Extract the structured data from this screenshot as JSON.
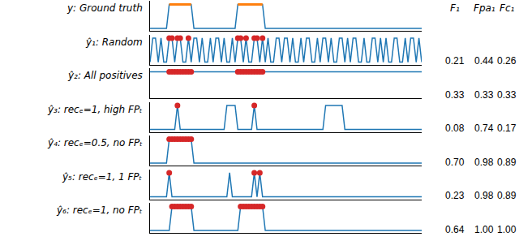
{
  "chart_data": [
    {
      "type": "line",
      "title": "y: Ground truth",
      "xlim": [
        0,
        99
      ],
      "ylim": [
        -0.1,
        1.15
      ],
      "xticks": [],
      "yticks": [],
      "tick_labels": false,
      "series": [
        {
          "color": "#1f77b4",
          "x": [
            0,
            6,
            7,
            15,
            16,
            31,
            32,
            41,
            42,
            99
          ],
          "values": [
            0,
            0,
            1,
            1,
            0,
            0,
            1,
            1,
            0,
            0
          ]
        },
        {
          "color": "#ff7f0e",
          "x": [
            7,
            15
          ],
          "values": [
            1,
            1
          ]
        },
        {
          "color": "#ff7f0e",
          "x": [
            32,
            41
          ],
          "values": [
            1,
            1
          ]
        }
      ]
    },
    {
      "type": "line",
      "title": "ŷ₁: Random",
      "xlim": [
        0,
        99
      ],
      "ylim": [
        -0.1,
        1.15
      ],
      "xticks": [],
      "yticks": [],
      "tick_labels": false,
      "series": [
        {
          "color": "#1f77b4",
          "x": [
            0,
            1,
            2,
            3,
            4,
            5,
            6,
            7,
            8,
            9,
            10,
            11,
            12,
            13,
            14,
            15,
            16,
            17,
            18,
            19,
            20,
            21,
            22,
            23,
            24,
            25,
            26,
            27,
            28,
            29,
            30,
            31,
            32,
            33,
            34,
            35,
            36,
            37,
            38,
            39,
            40,
            41,
            42,
            43,
            44,
            45,
            46,
            47,
            48,
            49,
            50,
            51,
            52,
            53,
            54,
            55,
            56,
            57,
            58,
            59,
            60,
            61,
            62,
            63,
            64,
            65,
            66,
            67,
            68,
            69,
            70,
            71,
            72,
            73,
            74,
            75,
            76,
            77,
            78,
            79,
            80,
            81,
            82,
            83,
            84,
            85,
            86,
            87,
            88,
            89,
            90,
            91,
            92,
            93,
            94,
            95,
            96,
            97,
            98,
            99
          ],
          "values": [
            0,
            1,
            1,
            0,
            1,
            0,
            0,
            1,
            1,
            0,
            1,
            1,
            0,
            0,
            1,
            0,
            1,
            1,
            0,
            1,
            0,
            0,
            1,
            0,
            1,
            1,
            0,
            1,
            0,
            0,
            1,
            0,
            1,
            1,
            0,
            1,
            0,
            0,
            1,
            1,
            0,
            1,
            0,
            1,
            0,
            0,
            1,
            1,
            0,
            1,
            1,
            0,
            1,
            0,
            0,
            1,
            0,
            1,
            1,
            0,
            0,
            1,
            0,
            1,
            1,
            0,
            1,
            0,
            0,
            1,
            1,
            0,
            1,
            0,
            1,
            1,
            0,
            0,
            1,
            0,
            0,
            1,
            1,
            0,
            1,
            0,
            1,
            0,
            0,
            1,
            1,
            0,
            0,
            1,
            0,
            1,
            1,
            0,
            1,
            0
          ]
        },
        {
          "color": "#d62728",
          "marker": "circle",
          "line_style": "none",
          "x": [
            7,
            8,
            10,
            11,
            14,
            32,
            33,
            35,
            38,
            39,
            41
          ],
          "values": [
            1,
            1,
            1,
            1,
            1,
            1,
            1,
            1,
            1,
            1,
            1
          ]
        }
      ]
    },
    {
      "type": "line",
      "title": "ŷ₂: All positives",
      "xlim": [
        0,
        99
      ],
      "ylim": [
        -0.1,
        1.15
      ],
      "xticks": [],
      "yticks": [],
      "tick_labels": false,
      "series": [
        {
          "color": "#1f77b4",
          "x": [
            0,
            99
          ],
          "values": [
            1,
            1
          ]
        },
        {
          "color": "#d62728",
          "marker": "circle",
          "line_style": "none",
          "x": [
            7,
            8,
            9,
            10,
            11,
            12,
            13,
            14,
            15,
            32,
            33,
            34,
            35,
            36,
            37,
            38,
            39,
            40,
            41
          ],
          "values": [
            1,
            1,
            1,
            1,
            1,
            1,
            1,
            1,
            1,
            1,
            1,
            1,
            1,
            1,
            1,
            1,
            1,
            1,
            1
          ]
        }
      ]
    },
    {
      "type": "line",
      "title": "ŷ₃: recₑ=1, high FPₜ",
      "xlim": [
        0,
        99
      ],
      "ylim": [
        -0.1,
        1.15
      ],
      "xticks": [],
      "yticks": [],
      "tick_labels": false,
      "series": [
        {
          "color": "#1f77b4",
          "x": [
            0,
            9,
            10,
            11,
            27,
            28,
            31,
            32,
            37,
            38,
            39,
            63,
            64,
            70,
            71,
            99
          ],
          "values": [
            0,
            0,
            1,
            0,
            0,
            1,
            1,
            0,
            0,
            1,
            0,
            0,
            1,
            1,
            0,
            0
          ]
        },
        {
          "color": "#d62728",
          "marker": "circle",
          "line_style": "none",
          "x": [
            10,
            38
          ],
          "values": [
            1,
            1
          ]
        }
      ]
    },
    {
      "type": "line",
      "title": "ŷ₄: recₑ=0.5, no FPₜ",
      "xlim": [
        0,
        99
      ],
      "ylim": [
        -0.1,
        1.15
      ],
      "xticks": [],
      "yticks": [],
      "tick_labels": false,
      "series": [
        {
          "color": "#1f77b4",
          "x": [
            0,
            6,
            7,
            15,
            16,
            99
          ],
          "values": [
            0,
            0,
            1,
            1,
            0,
            0
          ]
        },
        {
          "color": "#d62728",
          "marker": "circle",
          "line_style": "none",
          "x": [
            7,
            8,
            9,
            10,
            11,
            12,
            13,
            14,
            15
          ],
          "values": [
            1,
            1,
            1,
            1,
            1,
            1,
            1,
            1,
            1
          ]
        }
      ]
    },
    {
      "type": "line",
      "title": "ŷ₅: recₑ=1, 1 FPₜ",
      "xlim": [
        0,
        99
      ],
      "ylim": [
        -0.1,
        1.15
      ],
      "xticks": [],
      "yticks": [],
      "tick_labels": false,
      "series": [
        {
          "color": "#1f77b4",
          "x": [
            0,
            6,
            7,
            8,
            28,
            29,
            30,
            37,
            38,
            39,
            40,
            41,
            99
          ],
          "values": [
            0,
            0,
            1,
            0,
            0,
            1,
            0,
            0,
            1,
            0,
            1,
            0,
            0
          ]
        },
        {
          "color": "#d62728",
          "marker": "circle",
          "line_style": "none",
          "x": [
            7,
            38,
            40
          ],
          "values": [
            1,
            1,
            1
          ]
        }
      ]
    },
    {
      "type": "line",
      "title": "ŷ₆: recₑ=1, no FPₜ",
      "xlim": [
        0,
        99
      ],
      "ylim": [
        -0.1,
        1.15
      ],
      "xticks": [],
      "yticks": [],
      "tick_labels": false,
      "series": [
        {
          "color": "#1f77b4",
          "x": [
            0,
            7,
            8,
            15,
            16,
            32,
            33,
            41,
            42,
            99
          ],
          "values": [
            0,
            0,
            1,
            1,
            0,
            0,
            1,
            1,
            0,
            0
          ]
        },
        {
          "color": "#d62728",
          "marker": "circle",
          "line_style": "none",
          "x": [
            8,
            9,
            10,
            11,
            12,
            13,
            14,
            15,
            33,
            34,
            35,
            36,
            37,
            38,
            39,
            40,
            41
          ],
          "values": [
            1,
            1,
            1,
            1,
            1,
            1,
            1,
            1,
            1,
            1,
            1,
            1,
            1,
            1,
            1,
            1,
            1
          ]
        }
      ]
    }
  ],
  "table": {
    "columns": [
      "F₁",
      "Fpa₁",
      "Fc₁"
    ],
    "rows": [
      [
        "0.21",
        "0.44",
        "0.26"
      ],
      [
        "0.33",
        "0.33",
        "0.33"
      ],
      [
        "0.08",
        "0.74",
        "0.17"
      ],
      [
        "0.70",
        "0.98",
        "0.89"
      ],
      [
        "0.23",
        "0.98",
        "0.89"
      ],
      [
        "0.64",
        "1.00",
        "1.00"
      ]
    ]
  }
}
